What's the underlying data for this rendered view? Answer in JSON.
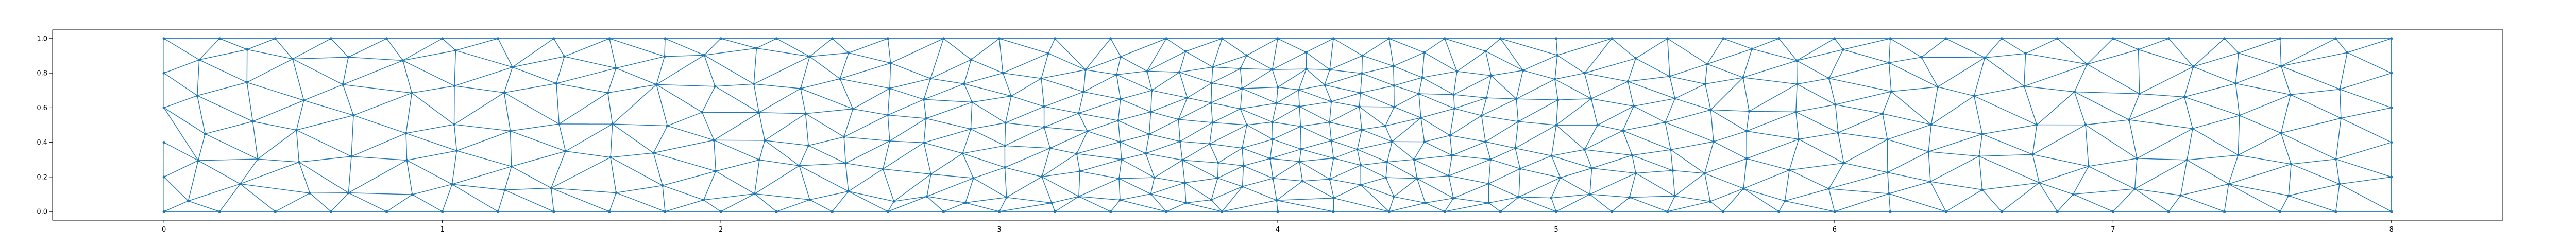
{
  "chart_data": {
    "type": "scatter",
    "title": "",
    "xlabel": "",
    "ylabel": "",
    "xlim": [
      -0.4,
      8.4
    ],
    "ylim": [
      -0.05,
      1.05
    ],
    "x_ticks": [
      "0",
      "1",
      "2",
      "3",
      "4",
      "5",
      "6",
      "7",
      "8"
    ],
    "y_ticks": [
      "0.0",
      "0.2",
      "0.4",
      "0.6",
      "0.8",
      "1.0"
    ],
    "grid": false,
    "legend": "none",
    "colors": {
      "mesh": "#1f77b4",
      "axes": "#000000"
    },
    "mesh": {
      "domain": {
        "x": [
          0,
          8
        ],
        "y": [
          0,
          1
        ]
      },
      "boundary_node_spacing": {
        "bottom_top": 0.2,
        "left_right": 0.2
      },
      "element_type": "triangle",
      "refinement_region_x": [
        3.3,
        4.8
      ]
    }
  }
}
